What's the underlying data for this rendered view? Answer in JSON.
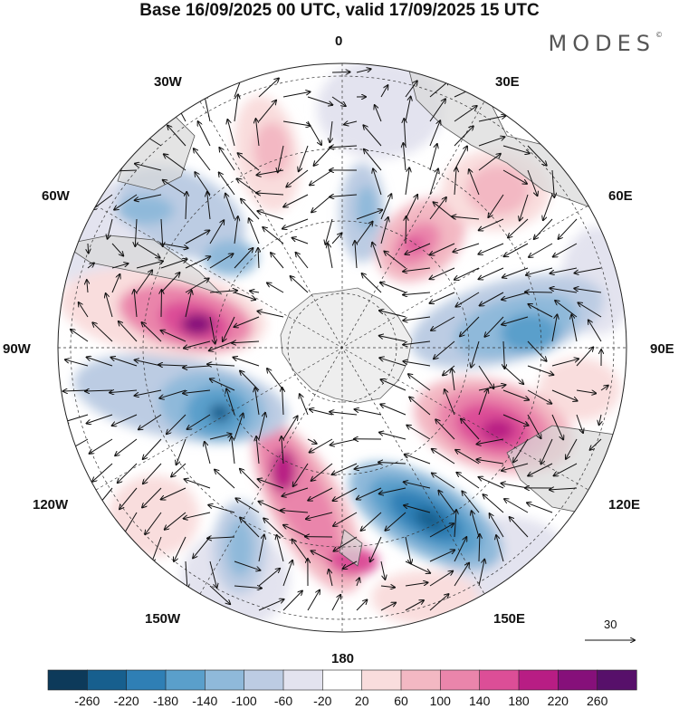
{
  "title": "Base 16/09/2025 00 UTC, valid 17/09/2025 15 UTC",
  "brand": "MODES",
  "brand_mark": "©",
  "longitude_labels": [
    {
      "id": "lon-0",
      "text": "0"
    },
    {
      "id": "lon-30e",
      "text": "30E"
    },
    {
      "id": "lon-60e",
      "text": "60E"
    },
    {
      "id": "lon-90e",
      "text": "90E"
    },
    {
      "id": "lon-120e",
      "text": "120E"
    },
    {
      "id": "lon-150e",
      "text": "150E"
    },
    {
      "id": "lon-180",
      "text": "180"
    },
    {
      "id": "lon-150w",
      "text": "150W"
    },
    {
      "id": "lon-120w",
      "text": "120W"
    },
    {
      "id": "lon-90w",
      "text": "90W"
    },
    {
      "id": "lon-60w",
      "text": "60W"
    },
    {
      "id": "lon-30w",
      "text": "30W"
    }
  ],
  "reference_vector": {
    "value": "30"
  },
  "colorbar": {
    "ticks": [
      "-260",
      "-220",
      "-180",
      "-140",
      "-100",
      "-60",
      "-20",
      "20",
      "60",
      "100",
      "140",
      "180",
      "220",
      "260"
    ],
    "colors": [
      "#0d3a5a",
      "#175f8e",
      "#2f7fb5",
      "#5a9fcb",
      "#8fb9da",
      "#bccce3",
      "#e3e3ef",
      "#ffffff",
      "#f9dddd",
      "#f3b8c3",
      "#ea85ab",
      "#dc4e97",
      "#b81d84",
      "#86107a",
      "#57106a"
    ]
  },
  "colors": {
    "land": "#d9d9d9",
    "antarctica": "#eeeeee",
    "grid": "#333333"
  }
}
